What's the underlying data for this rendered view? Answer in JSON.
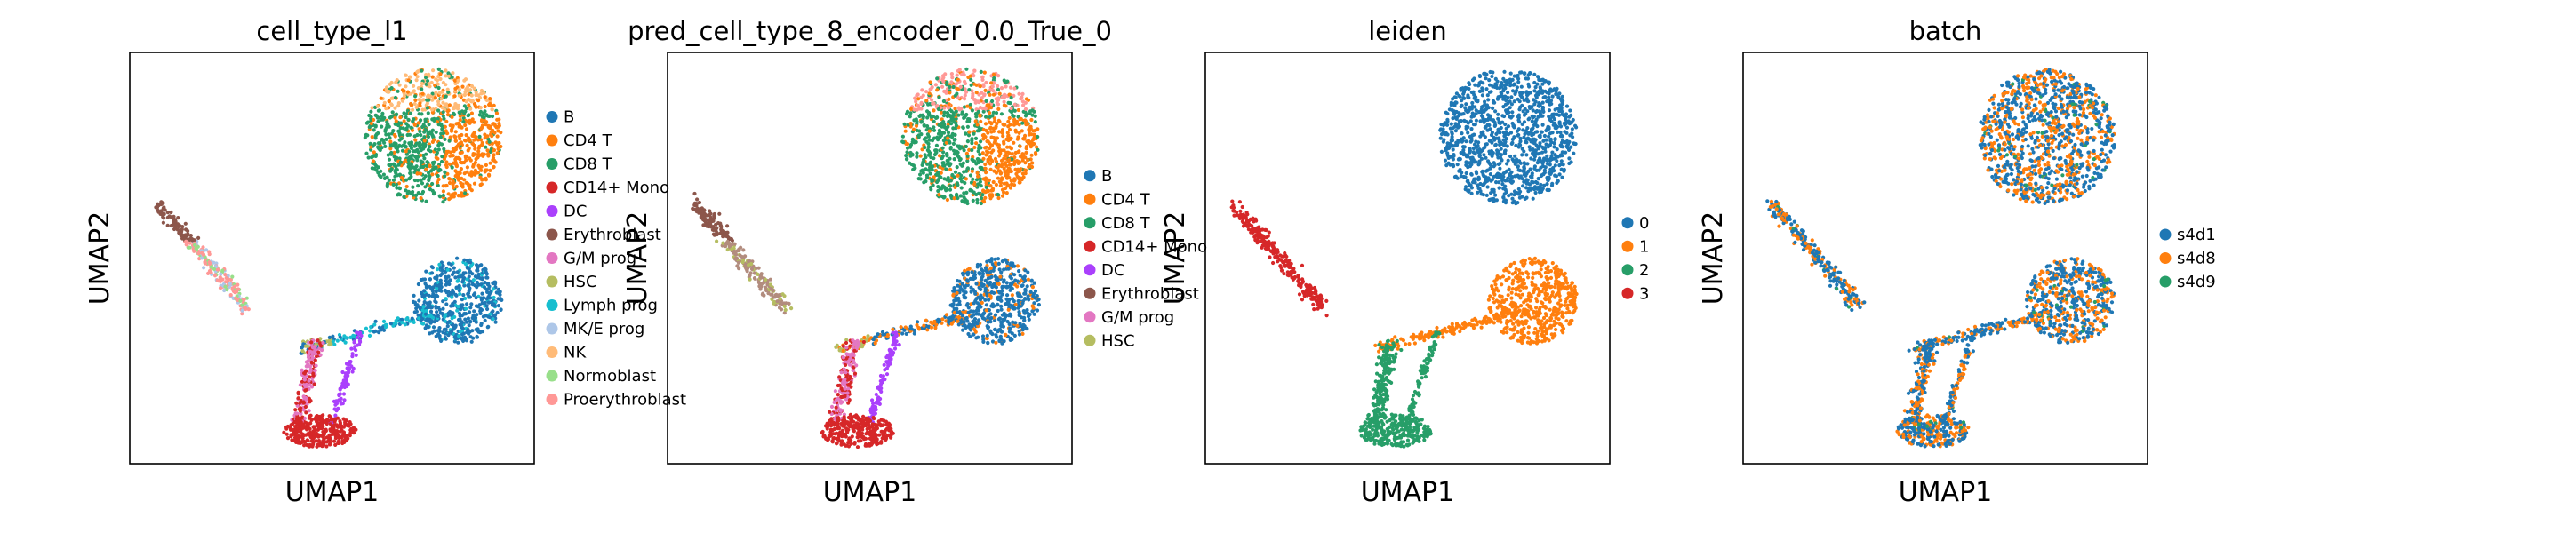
{
  "chart_data": [
    {
      "type": "scatter",
      "title": "cell_type_l1",
      "xlabel": "UMAP1",
      "ylabel": "UMAP2",
      "grid": false,
      "legend_position": "right",
      "legend": [
        {
          "label": "B",
          "color": "#1f77b4"
        },
        {
          "label": "CD4 T",
          "color": "#ff7f0e"
        },
        {
          "label": "CD8 T",
          "color": "#279e68"
        },
        {
          "label": "CD14+ Mono",
          "color": "#d62728"
        },
        {
          "label": "DC",
          "color": "#aa40fc"
        },
        {
          "label": "Erythroblast",
          "color": "#8c564b"
        },
        {
          "label": "G/M prog",
          "color": "#e377c2"
        },
        {
          "label": "HSC",
          "color": "#b5bd61"
        },
        {
          "label": "Lymph prog",
          "color": "#17becf"
        },
        {
          "label": "MK/E prog",
          "color": "#aec7e8"
        },
        {
          "label": "NK",
          "color": "#ffbb78"
        },
        {
          "label": "Normoblast",
          "color": "#98df8a"
        },
        {
          "label": "Proerythroblast",
          "color": "#ff9896"
        }
      ]
    },
    {
      "type": "scatter",
      "title": "pred_cell_type_8_encoder_0.0_True_0",
      "xlabel": "UMAP1",
      "ylabel": "UMAP2",
      "grid": false,
      "legend_position": "right",
      "legend": [
        {
          "label": "B",
          "color": "#1f77b4"
        },
        {
          "label": "CD4 T",
          "color": "#ff7f0e"
        },
        {
          "label": "CD8 T",
          "color": "#279e68"
        },
        {
          "label": "CD14+ Mono",
          "color": "#d62728"
        },
        {
          "label": "DC",
          "color": "#aa40fc"
        },
        {
          "label": "Erythroblast",
          "color": "#8c564b"
        },
        {
          "label": "G/M prog",
          "color": "#e377c2"
        },
        {
          "label": "HSC",
          "color": "#b5bd61"
        }
      ]
    },
    {
      "type": "scatter",
      "title": "leiden",
      "xlabel": "UMAP1",
      "ylabel": "UMAP2",
      "grid": false,
      "legend_position": "right",
      "legend": [
        {
          "label": "0",
          "color": "#1f77b4"
        },
        {
          "label": "1",
          "color": "#ff7f0e"
        },
        {
          "label": "2",
          "color": "#279e68"
        },
        {
          "label": "3",
          "color": "#d62728"
        }
      ]
    },
    {
      "type": "scatter",
      "title": "batch",
      "xlabel": "UMAP1",
      "ylabel": "UMAP2",
      "grid": false,
      "legend_position": "right",
      "legend": [
        {
          "label": "s4d1",
          "color": "#1f77b4"
        },
        {
          "label": "s4d8",
          "color": "#ff7f0e"
        },
        {
          "label": "s4d9",
          "color": "#279e68"
        }
      ]
    }
  ]
}
